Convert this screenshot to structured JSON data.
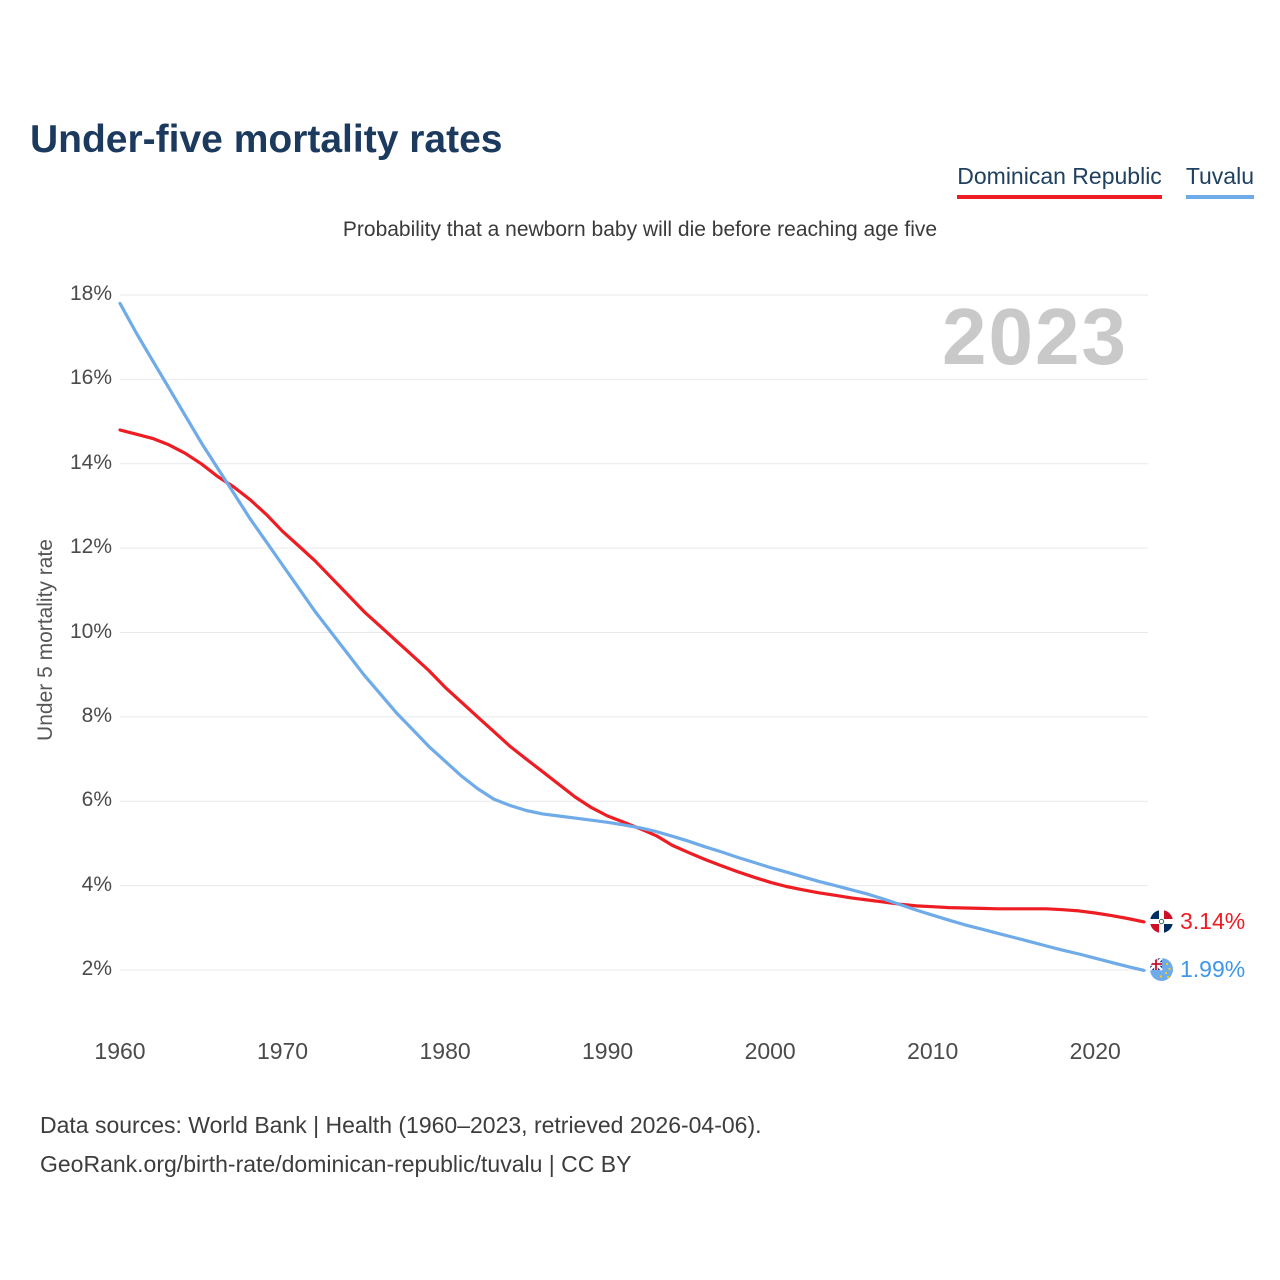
{
  "title": "Under-five mortality rates",
  "subtitle": "Probability that a newborn baby will die before reaching age five",
  "watermark": "2023",
  "legend": {
    "items": [
      {
        "label": "Dominican Republic",
        "color": "#ee1d23"
      },
      {
        "label": "Tuvalu",
        "color": "#6fabe8"
      }
    ]
  },
  "footer": {
    "line1": "Data sources: World Bank | Health (1960–2023, retrieved 2026-04-06).",
    "line2": "GeoRank.org/birth-rate/dominican-republic/tuvalu | CC BY"
  },
  "chart_data": {
    "type": "line",
    "title": "Under-five mortality rates",
    "subtitle": "Probability that a newborn baby will die before reaching age five",
    "ylabel": "Under 5 mortality rate",
    "xlabel": "",
    "xlim": [
      1960,
      2023
    ],
    "ylim": [
      2,
      18
    ],
    "y_ticks": [
      2,
      4,
      6,
      8,
      10,
      12,
      14,
      16,
      18
    ],
    "y_tick_suffix": "%",
    "x_ticks": [
      1960,
      1970,
      1980,
      1990,
      2000,
      2010,
      2020
    ],
    "grid": "horizontal",
    "legend_position": "top-right",
    "series": [
      {
        "name": "Dominican Republic",
        "color": "#ee1d23",
        "end_label": "3.14%",
        "values": [
          14.8,
          14.7,
          14.6,
          14.45,
          14.25,
          14.0,
          13.7,
          13.45,
          13.15,
          12.8,
          12.4,
          12.05,
          11.7,
          11.3,
          10.9,
          10.5,
          10.15,
          9.8,
          9.45,
          9.1,
          8.7,
          8.35,
          8.0,
          7.65,
          7.3,
          7.0,
          6.7,
          6.4,
          6.1,
          5.85,
          5.65,
          5.5,
          5.35,
          5.18,
          4.95,
          4.78,
          4.62,
          4.47,
          4.33,
          4.2,
          4.08,
          3.98,
          3.9,
          3.83,
          3.77,
          3.71,
          3.66,
          3.61,
          3.56,
          3.52,
          3.5,
          3.48,
          3.47,
          3.46,
          3.45,
          3.45,
          3.45,
          3.45,
          3.43,
          3.4,
          3.35,
          3.29,
          3.22,
          3.14
        ]
      },
      {
        "name": "Tuvalu",
        "color": "#6fabe8",
        "end_label": "1.99%",
        "values": [
          17.8,
          17.1,
          16.45,
          15.8,
          15.15,
          14.5,
          13.9,
          13.3,
          12.7,
          12.15,
          11.6,
          11.05,
          10.5,
          10.0,
          9.5,
          9.0,
          8.55,
          8.1,
          7.7,
          7.3,
          6.95,
          6.6,
          6.3,
          6.05,
          5.9,
          5.78,
          5.7,
          5.65,
          5.6,
          5.55,
          5.5,
          5.44,
          5.37,
          5.28,
          5.17,
          5.05,
          4.92,
          4.8,
          4.67,
          4.55,
          4.43,
          4.32,
          4.21,
          4.1,
          4.0,
          3.9,
          3.8,
          3.68,
          3.55,
          3.42,
          3.3,
          3.18,
          3.07,
          2.97,
          2.87,
          2.77,
          2.67,
          2.57,
          2.47,
          2.38,
          2.28,
          2.18,
          2.08,
          1.99
        ]
      }
    ]
  }
}
